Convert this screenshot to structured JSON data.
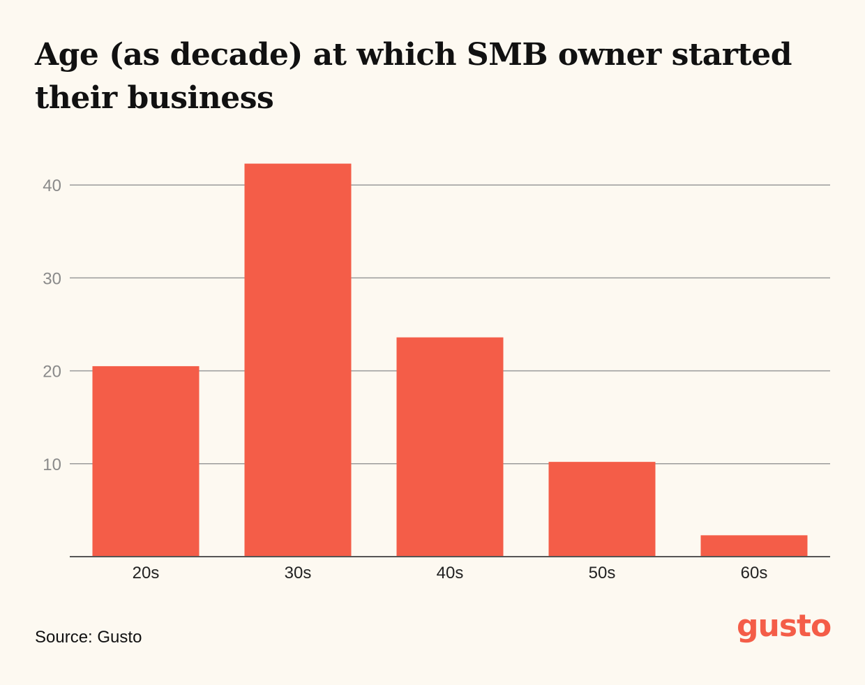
{
  "title": "Age (as decade) at which SMB owner started their business",
  "source": "Source: Gusto",
  "logo_text": "gusto",
  "colors": {
    "background": "#fdf9f1",
    "bar": "#f45d48",
    "gridline": "#9a9a9a",
    "axis": "#555555",
    "brand": "#f45d48"
  },
  "chart_data": {
    "type": "bar",
    "title": "Age (as decade) at which SMB owner started their business",
    "categories": [
      "20s",
      "30s",
      "40s",
      "50s",
      "60s"
    ],
    "values": [
      20.5,
      42.3,
      23.6,
      10.2,
      2.3
    ],
    "xlabel": "",
    "ylabel": "",
    "ylim": [
      0,
      45
    ],
    "yticks": [
      10,
      20,
      30,
      40
    ],
    "grid": true,
    "legend": "none"
  }
}
